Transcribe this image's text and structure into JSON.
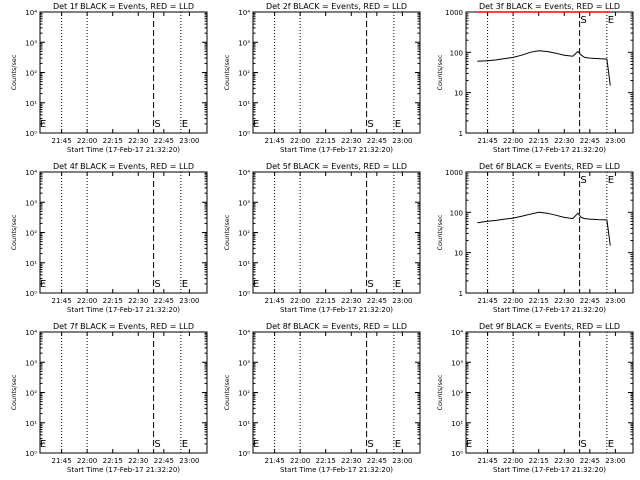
{
  "start_time_label": "Start Time (17-Feb-17 21:32:20)",
  "ylabel": "Counts/sec",
  "x_ticks": [
    "21:45",
    "22:00",
    "22:15",
    "22:30",
    "22:45",
    "23:00"
  ],
  "marker_s": "S",
  "marker_e": "E",
  "ticks_small": [
    "10⁰",
    "10¹",
    "10²",
    "10³",
    "10⁴"
  ],
  "ticks_big": [
    "1",
    "10",
    "100",
    "1000"
  ],
  "chart_data": [
    {
      "type": "line",
      "title": "Det 1f BLACK = Events, RED = LLD",
      "y_scale": "log",
      "ylim": [
        1,
        10000
      ],
      "data_present": false
    },
    {
      "type": "line",
      "title": "Det 2f BLACK = Events, RED = LLD",
      "y_scale": "log",
      "ylim": [
        1,
        10000
      ],
      "data_present": false
    },
    {
      "type": "line",
      "title": "Det 3f BLACK = Events, RED = LLD",
      "y_scale": "log",
      "ylim": [
        1,
        1000
      ],
      "data_present": true,
      "series": [
        {
          "color": "#000000",
          "x": [
            "21:39",
            "21:45",
            "21:50",
            "21:55",
            "22:00",
            "22:05",
            "22:10",
            "22:15",
            "22:20",
            "22:25",
            "22:30",
            "22:35",
            "22:38",
            "22:40",
            "22:42",
            "22:45",
            "22:50",
            "22:55",
            "22:57"
          ],
          "values": [
            60,
            62,
            65,
            70,
            75,
            85,
            100,
            110,
            105,
            95,
            85,
            80,
            105,
            85,
            75,
            72,
            70,
            68,
            15
          ]
        },
        {
          "color": "#ff0000",
          "x": [
            "21:39",
            "22:57"
          ],
          "values": [
            1000,
            1000
          ]
        }
      ]
    },
    {
      "type": "line",
      "title": "Det 4f BLACK = Events, RED = LLD",
      "y_scale": "log",
      "ylim": [
        1,
        10000
      ],
      "data_present": false
    },
    {
      "type": "line",
      "title": "Det 5f BLACK = Events, RED = LLD",
      "y_scale": "log",
      "ylim": [
        1,
        10000
      ],
      "data_present": false
    },
    {
      "type": "line",
      "title": "Det 6f BLACK = Events, RED = LLD",
      "y_scale": "log",
      "ylim": [
        1,
        1000
      ],
      "data_present": true,
      "series": [
        {
          "color": "#000000",
          "x": [
            "21:39",
            "21:45",
            "21:50",
            "21:55",
            "22:00",
            "22:05",
            "22:10",
            "22:15",
            "22:20",
            "22:25",
            "22:30",
            "22:35",
            "22:38",
            "22:40",
            "22:42",
            "22:45",
            "22:50",
            "22:55",
            "22:57"
          ],
          "values": [
            55,
            60,
            63,
            68,
            72,
            80,
            90,
            100,
            95,
            85,
            75,
            70,
            95,
            75,
            70,
            68,
            66,
            65,
            15
          ]
        }
      ]
    },
    {
      "type": "line",
      "title": "Det 7f BLACK = Events, RED = LLD",
      "y_scale": "log",
      "ylim": [
        1,
        10000
      ],
      "data_present": false
    },
    {
      "type": "line",
      "title": "Det 8f BLACK = Events, RED = LLD",
      "y_scale": "log",
      "ylim": [
        1,
        10000
      ],
      "data_present": false
    },
    {
      "type": "line",
      "title": "Det 9f BLACK = Events, RED = LLD",
      "y_scale": "log",
      "ylim": [
        1,
        10000
      ],
      "data_present": false
    }
  ]
}
